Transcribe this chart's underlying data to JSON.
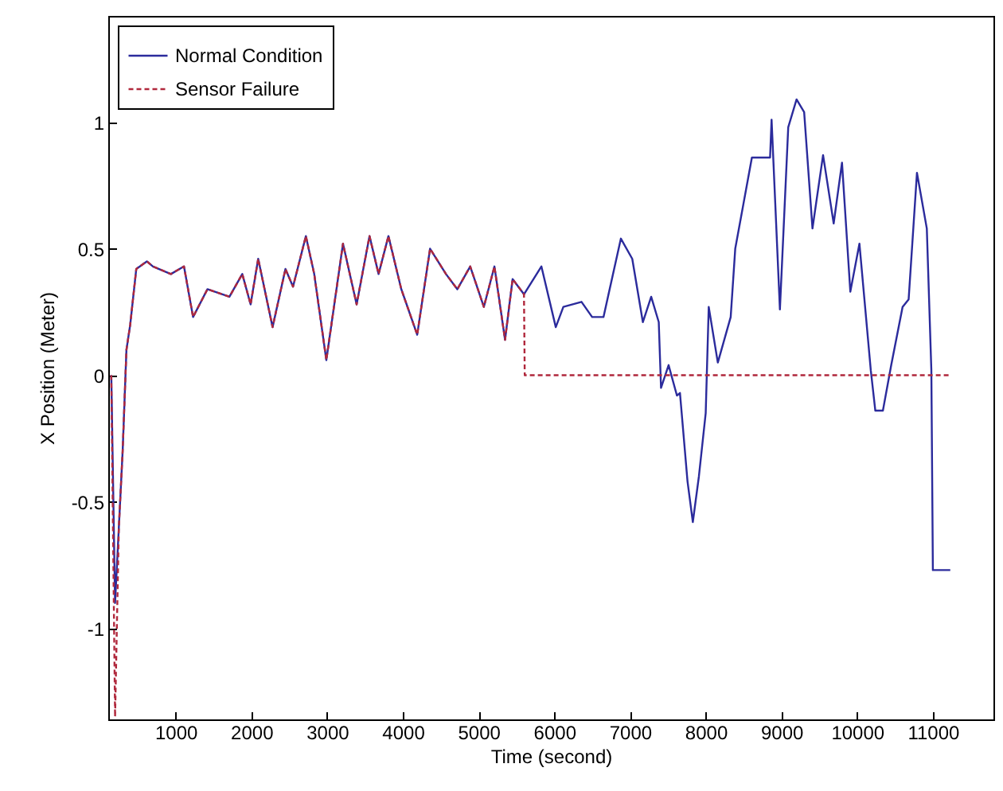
{
  "chart_data": {
    "type": "line",
    "xlabel": "Time (second)",
    "ylabel": "X Position (Meter)",
    "xlim": [
      110,
      11800
    ],
    "ylim": [
      -1.36,
      1.42
    ],
    "xticks": [
      1000,
      2000,
      3000,
      4000,
      5000,
      6000,
      7000,
      8000,
      9000,
      10000,
      11000
    ],
    "yticks": [
      -1,
      -0.5,
      0,
      0.5,
      1
    ],
    "grid": false,
    "legend": "top left",
    "series": [
      {
        "name": "Normal Condition",
        "color": "#2b2b9c",
        "line_style": "solid",
        "x": [
          150,
          200,
          250,
          300,
          350,
          400,
          480,
          620,
          700,
          937,
          1110,
          1230,
          1420,
          1710,
          1880,
          1990,
          2090,
          2280,
          2450,
          2550,
          2720,
          2830,
          2990,
          3210,
          3390,
          3560,
          3680,
          3810,
          3980,
          4190,
          4360,
          4570,
          4720,
          4890,
          5070,
          5210,
          5350,
          5450,
          5600,
          5830,
          6020,
          6120,
          6360,
          6500,
          6650,
          6880,
          7030,
          7170,
          7280,
          7380,
          7410,
          7510,
          7620,
          7660,
          7760,
          7830,
          7910,
          8000,
          8040,
          8160,
          8330,
          8390,
          8610,
          8850,
          8870,
          8980,
          9090,
          9200,
          9300,
          9410,
          9550,
          9690,
          9800,
          9910,
          10030,
          10180,
          10240,
          10340,
          10450,
          10600,
          10680,
          10790,
          10920,
          10980,
          11000,
          11230
        ],
        "values": [
          0,
          -0.9,
          -0.6,
          -0.3,
          0.1,
          0.2,
          0.42,
          0.45,
          0.43,
          0.4,
          0.43,
          0.23,
          0.34,
          0.31,
          0.4,
          0.28,
          0.46,
          0.19,
          0.42,
          0.35,
          0.55,
          0.4,
          0.06,
          0.52,
          0.28,
          0.55,
          0.4,
          0.55,
          0.34,
          0.16,
          0.5,
          0.4,
          0.34,
          0.43,
          0.27,
          0.43,
          0.14,
          0.38,
          0.32,
          0.43,
          0.19,
          0.27,
          0.29,
          0.23,
          0.23,
          0.54,
          0.46,
          0.21,
          0.31,
          0.21,
          -0.05,
          0.04,
          -0.08,
          -0.07,
          -0.42,
          -0.58,
          -0.4,
          -0.15,
          0.27,
          0.05,
          0.23,
          0.5,
          0.86,
          0.86,
          1.01,
          0.26,
          0.98,
          1.09,
          1.04,
          0.58,
          0.87,
          0.6,
          0.84,
          0.33,
          0.52,
          0.02,
          -0.14,
          -0.14,
          0.04,
          0.27,
          0.3,
          0.8,
          0.58,
          0.02,
          -0.77,
          -0.77
        ]
      },
      {
        "name": "Sensor Failure",
        "color": "#b0283c",
        "line_style": "dashed",
        "x": [
          150,
          200,
          250,
          300,
          350,
          400,
          480,
          620,
          700,
          937,
          1110,
          1230,
          1420,
          1710,
          1880,
          1990,
          2090,
          2280,
          2450,
          2550,
          2720,
          2830,
          2990,
          3210,
          3390,
          3560,
          3680,
          3810,
          3980,
          4190,
          4360,
          4570,
          4720,
          4890,
          5070,
          5210,
          5350,
          5450,
          5600,
          5610,
          11230
        ],
        "values": [
          0,
          -1.35,
          -0.6,
          -0.3,
          0.1,
          0.2,
          0.42,
          0.45,
          0.43,
          0.4,
          0.43,
          0.23,
          0.34,
          0.31,
          0.4,
          0.28,
          0.46,
          0.19,
          0.42,
          0.35,
          0.55,
          0.4,
          0.06,
          0.52,
          0.28,
          0.55,
          0.4,
          0.55,
          0.34,
          0.16,
          0.5,
          0.4,
          0.34,
          0.43,
          0.27,
          0.43,
          0.14,
          0.38,
          0.32,
          0,
          0
        ]
      }
    ]
  }
}
